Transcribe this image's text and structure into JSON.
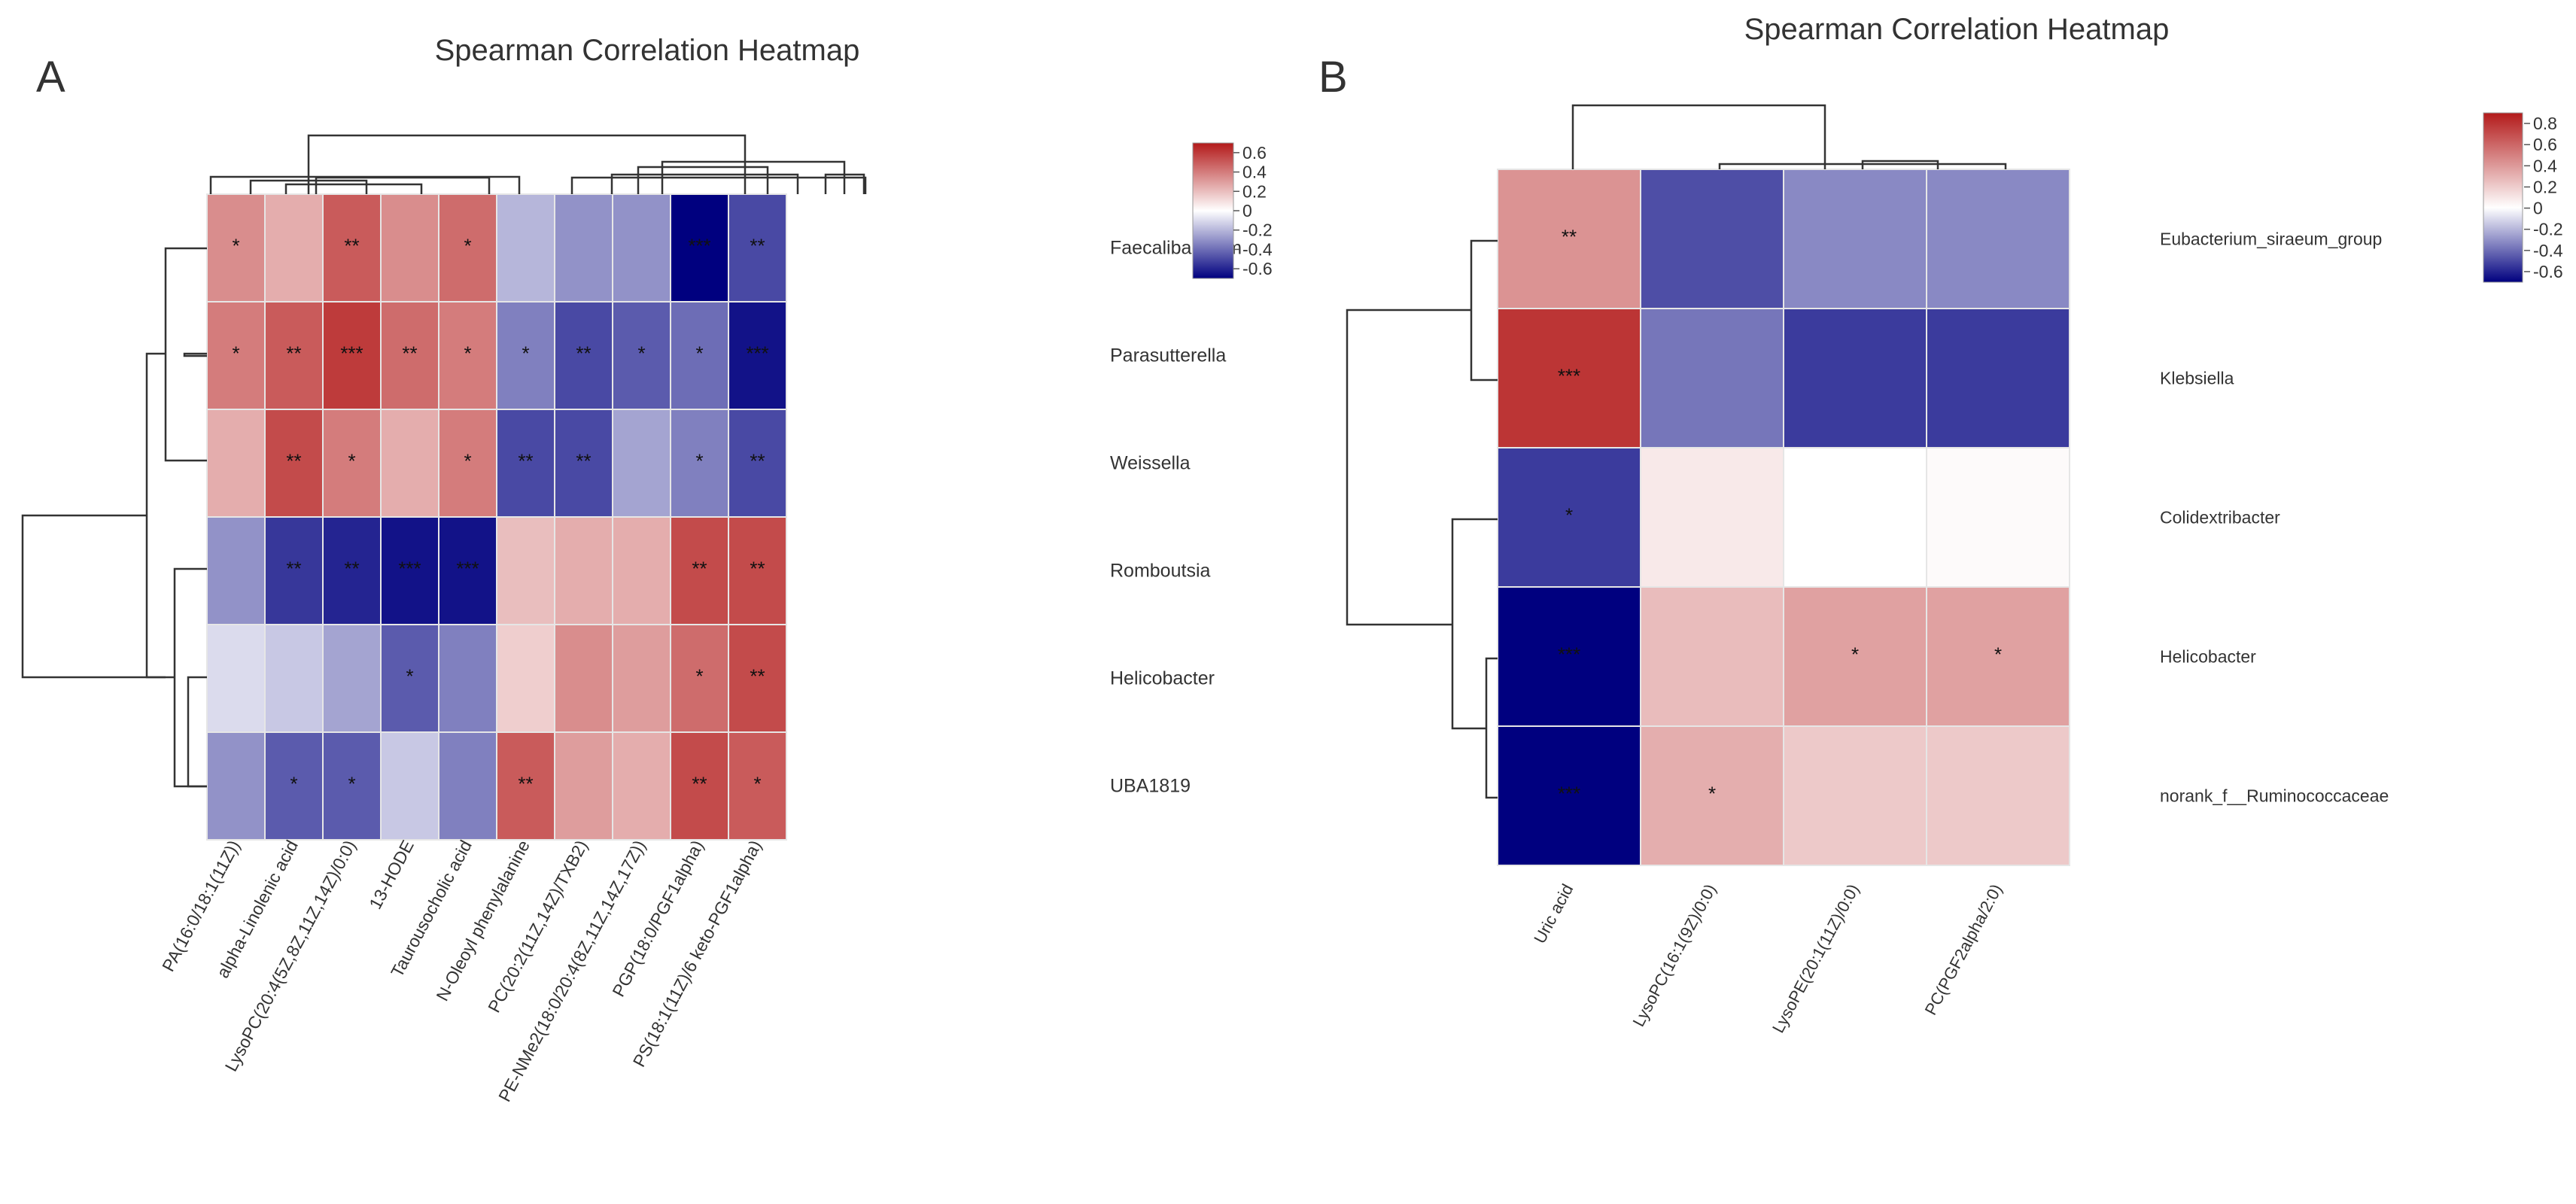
{
  "chart_data": [
    {
      "type": "heatmap",
      "panel_label": "A",
      "title": "Spearman Correlation Heatmap",
      "columns": [
        "PA(16:0/18:1(11Z))",
        "alpha-Linolenic acid",
        "LysoPC(20:4(5Z,8Z,11Z,14Z)/0:0)",
        "13-HODE",
        "Taurousocholic acid",
        "N-Oleoyl phenylalanine",
        "PC(20:2(11Z,14Z)/TXB2)",
        "PE-NMe2(18:0/20:4(8Z,11Z,14Z,17Z))",
        "PGP(18:0/PGF1alpha)",
        "PS(18:1(11Z)/6 keto-PGF1alpha)"
      ],
      "rows": [
        "Faecalibaculum",
        "Parasutterella",
        "Weissella",
        "Romboutsia",
        "Helicobacter",
        "UBA1819"
      ],
      "values": [
        [
          0.35,
          0.25,
          0.5,
          0.35,
          0.45,
          -0.2,
          -0.3,
          -0.3,
          -0.7,
          -0.5
        ],
        [
          0.4,
          0.5,
          0.6,
          0.45,
          0.4,
          -0.35,
          -0.5,
          -0.45,
          -0.4,
          -0.65
        ],
        [
          0.25,
          0.55,
          0.4,
          0.25,
          0.4,
          -0.5,
          -0.5,
          -0.25,
          -0.35,
          -0.5
        ],
        [
          -0.3,
          -0.55,
          -0.6,
          -0.65,
          -0.65,
          0.2,
          0.25,
          0.25,
          0.55,
          0.55
        ],
        [
          -0.1,
          -0.15,
          -0.25,
          -0.45,
          -0.35,
          0.15,
          0.35,
          0.3,
          0.45,
          0.55
        ],
        [
          -0.3,
          -0.45,
          -0.45,
          -0.15,
          -0.35,
          0.5,
          0.3,
          0.25,
          0.55,
          0.5
        ]
      ],
      "significance": [
        [
          "*",
          "",
          "**",
          "",
          "*",
          "",
          "",
          "",
          "***",
          "**"
        ],
        [
          "*",
          "**",
          "***",
          "**",
          "*",
          "*",
          "**",
          "*",
          "*",
          "***"
        ],
        [
          "",
          "**",
          "*",
          "",
          "*",
          "**",
          "**",
          "",
          "*",
          "**"
        ],
        [
          "",
          "**",
          "**",
          "***",
          "***",
          "",
          "",
          "",
          "**",
          "**"
        ],
        [
          "",
          "",
          "",
          "*",
          "",
          "",
          "",
          "",
          "*",
          "**"
        ],
        [
          "",
          "*",
          "*",
          "",
          "",
          "**",
          "",
          "",
          "**",
          "*"
        ]
      ],
      "colorbar": {
        "range": [
          -0.7,
          0.7
        ],
        "ticks": [
          "0.6",
          "0.4",
          "0.2",
          "0",
          "-0.2",
          "-0.4",
          "-0.6"
        ]
      },
      "colors": {
        "low": "#00007f",
        "mid": "#ffffff",
        "high": "#b31a1a"
      }
    },
    {
      "type": "heatmap",
      "panel_label": "B",
      "title": "Spearman Correlation Heatmap",
      "columns": [
        "Uric acid",
        "LysoPC(16:1(9Z)/0:0)",
        "LysoPE(20:1(11Z)/0:0)",
        "PC(PGF2alpha/2:0)"
      ],
      "rows": [
        "Eubacterium_siraeum_group",
        "Klebsiella",
        "Colidextribacter",
        "Helicobacter",
        "norank_f__Ruminococcaceae"
      ],
      "values": [
        [
          0.4,
          -0.45,
          -0.3,
          -0.3
        ],
        [
          0.75,
          -0.35,
          -0.5,
          -0.5
        ],
        [
          -0.5,
          0.08,
          0.0,
          0.02
        ],
        [
          -0.65,
          0.25,
          0.35,
          0.35
        ],
        [
          -0.65,
          0.3,
          0.2,
          0.2
        ]
      ],
      "significance": [
        [
          "**",
          "",
          "",
          ""
        ],
        [
          "***",
          "",
          "",
          ""
        ],
        [
          "*",
          "",
          "",
          ""
        ],
        [
          "***",
          "",
          "*",
          "*"
        ],
        [
          "***",
          "*",
          "",
          ""
        ]
      ],
      "colorbar": {
        "range": [
          -0.65,
          0.85
        ],
        "ticks": [
          "0.8",
          "0.6",
          "0.4",
          "0.2",
          "0",
          "-0.2",
          "-0.4",
          "-0.6"
        ]
      },
      "colors": {
        "low": "#00007f",
        "mid": "#ffffff",
        "high": "#b31a1a"
      }
    }
  ]
}
